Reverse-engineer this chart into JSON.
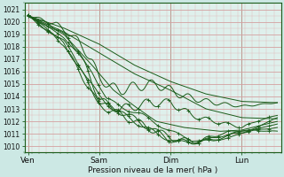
{
  "xlabel": "Pression niveau de la mer( hPa )",
  "bg_color": "#cce8e4",
  "plot_bg_color": "#dff0ec",
  "grid_color_major": "#d4a0a0",
  "grid_color_minor": "#e0b8b8",
  "line_color": "#1a5c1a",
  "ylim": [
    1009.5,
    1021.5
  ],
  "yticks": [
    1010,
    1011,
    1012,
    1013,
    1014,
    1015,
    1016,
    1017,
    1018,
    1019,
    1020,
    1021
  ],
  "xtick_labels": [
    "Ven",
    "Sam",
    "Dim",
    "Lun"
  ],
  "xtick_positions": [
    0.0,
    1.0,
    2.0,
    3.0
  ],
  "xlim": [
    -0.05,
    3.55
  ]
}
